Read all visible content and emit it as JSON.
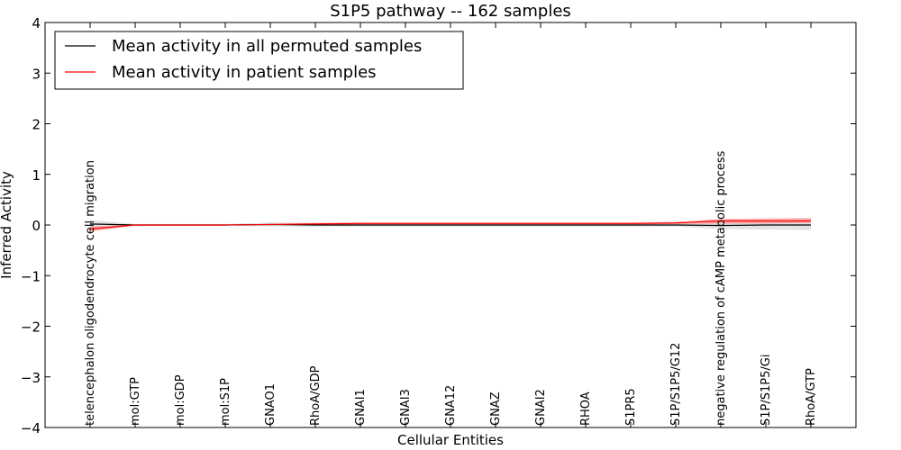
{
  "chart_data": {
    "type": "line",
    "title": "S1P5 pathway -- 162 samples",
    "xlabel": "Cellular Entities",
    "ylabel": "Inferred Activity",
    "ylim": [
      -4,
      4
    ],
    "yticks": [
      -4,
      -3,
      -2,
      -1,
      0,
      1,
      2,
      3,
      4
    ],
    "ytick_labels": [
      "−4",
      "−3",
      "−2",
      "−1",
      "0",
      "1",
      "2",
      "3",
      "4"
    ],
    "categories": [
      "telencephalon oligodendrocyte cell migration",
      "mol:GTP",
      "mol:GDP",
      "mol:S1P",
      "GNAO1",
      "RhoA/GDP",
      "GNAI1",
      "GNAI3",
      "GNA12",
      "GNAZ",
      "GNAI2",
      "RHOA",
      "S1PR5",
      "S1P/S1P5/G12",
      "negative regulation of cAMP metabolic process",
      "S1P/S1P5/Gi",
      "RhoA/GTP"
    ],
    "legend_position": "top-left",
    "series": [
      {
        "name": "Mean activity in all permuted samples",
        "color": "#000000",
        "band_color": "#c0c0c0",
        "values": [
          0.02,
          0.0,
          0.0,
          0.0,
          0.01,
          0.0,
          0.0,
          0.0,
          0.0,
          0.0,
          0.0,
          0.0,
          0.0,
          0.0,
          -0.01,
          0.0,
          0.0
        ],
        "lower": [
          -0.06,
          -0.02,
          -0.02,
          -0.02,
          -0.03,
          -0.03,
          -0.03,
          -0.03,
          -0.03,
          -0.03,
          -0.03,
          -0.03,
          -0.03,
          -0.03,
          -0.08,
          -0.09,
          -0.1
        ],
        "upper": [
          0.1,
          0.02,
          0.02,
          0.02,
          0.05,
          0.04,
          0.03,
          0.03,
          0.03,
          0.03,
          0.03,
          0.03,
          0.03,
          0.03,
          0.06,
          0.08,
          0.09
        ]
      },
      {
        "name": "Mean activity in patient samples",
        "color": "#ff0000",
        "band_color": "#ff7070",
        "values": [
          -0.08,
          0.0,
          0.0,
          0.0,
          0.01,
          0.02,
          0.03,
          0.03,
          0.03,
          0.03,
          0.03,
          0.03,
          0.03,
          0.04,
          0.08,
          0.08,
          0.08
        ],
        "lower": [
          -0.13,
          -0.01,
          -0.01,
          -0.01,
          0.0,
          0.01,
          0.01,
          0.01,
          0.01,
          0.01,
          0.01,
          0.01,
          0.01,
          0.02,
          0.03,
          0.03,
          0.04
        ],
        "upper": [
          -0.03,
          0.01,
          0.01,
          0.01,
          0.02,
          0.04,
          0.05,
          0.05,
          0.05,
          0.05,
          0.05,
          0.05,
          0.05,
          0.06,
          0.12,
          0.13,
          0.14
        ]
      }
    ]
  }
}
